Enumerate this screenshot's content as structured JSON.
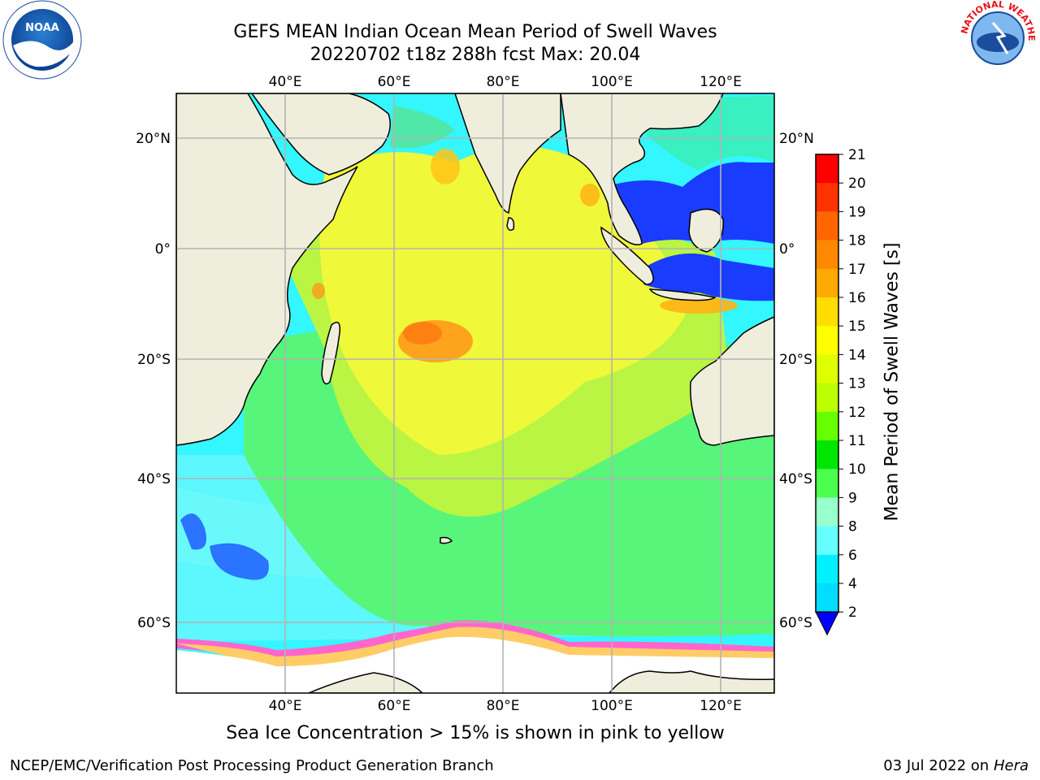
{
  "title": {
    "line1": "GEFS MEAN Indian Ocean Mean Period of Swell Waves",
    "line2": "20220702 t18z 288h fcst   Max: 20.04"
  },
  "colors": {
    "land": "#efeedd",
    "grid": "#b3b3b3",
    "ice_white": "#ffffff"
  },
  "map": {
    "lon_range": [
      20,
      130
    ],
    "lat_range": [
      -70,
      28
    ],
    "lon_ticks": [
      "40°E",
      "60°E",
      "80°E",
      "100°E",
      "120°E"
    ],
    "lat_ticks": [
      "20°N",
      "0°",
      "20°S",
      "40°S",
      "60°S"
    ],
    "lon_tick_values": [
      40,
      60,
      80,
      100,
      120
    ],
    "lat_tick_values": [
      20,
      0,
      -20,
      -40,
      -60
    ]
  },
  "colorbar": {
    "label": "Mean Period of Swell Waves [s]",
    "ticks": [
      "21",
      "20",
      "19",
      "18",
      "17",
      "16",
      "15",
      "14",
      "13",
      "12",
      "11",
      "10",
      "9",
      "8",
      "6",
      "4",
      "2"
    ],
    "colors": [
      "#ff0000",
      "#ff3300",
      "#ff6600",
      "#ff8800",
      "#ffaa00",
      "#ffdd00",
      "#ffff00",
      "#ddff00",
      "#bbff00",
      "#66ff00",
      "#00e600",
      "#4cff4c",
      "#99ffcc",
      "#66ffff",
      "#00f0ff",
      "#00ddff",
      "#0077ff"
    ],
    "extend_color": "#0000ff"
  },
  "footer": {
    "note": "Sea Ice Concentration > 15% is shown in pink to yellow",
    "left": "NCEP/EMC/Verification Post Processing Product Generation Branch",
    "right_date": "03 Jul 2022 on",
    "right_host": "Hera"
  },
  "logos": {
    "left_text": "NOAA",
    "right_text": "NATIONAL WEATHER SERVICE"
  }
}
